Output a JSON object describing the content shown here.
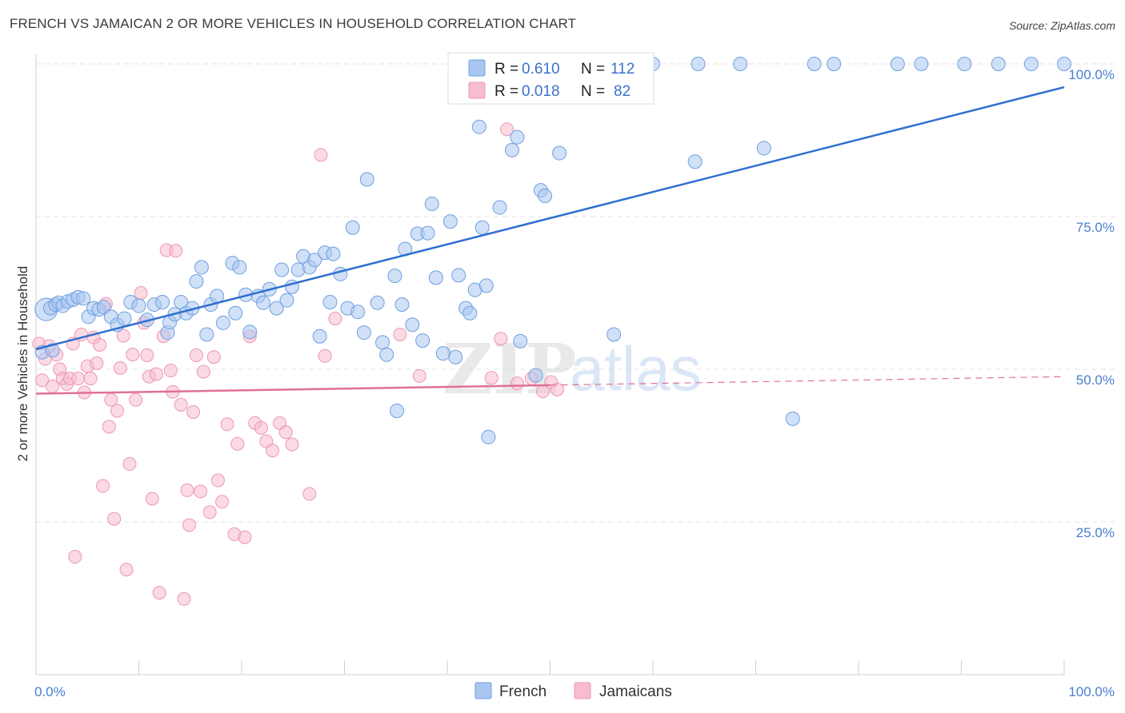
{
  "title": "FRENCH VS JAMAICAN 2 OR MORE VEHICLES IN HOUSEHOLD CORRELATION CHART",
  "source": "Source: ZipAtlas.com",
  "watermark": {
    "zip": "ZIP",
    "atlas": "atlas"
  },
  "colors": {
    "french_fill": "#a9c6f0",
    "french_stroke": "#6f9fe0",
    "french_line": "#2f6fcf",
    "jamaican_fill": "#f7bccd",
    "jamaican_stroke": "#ec97b1",
    "jamaican_line": "#e0709a",
    "tick_text": "#4a7fd0",
    "grid": "#e3e3e3"
  },
  "legend": {
    "rows": [
      {
        "r_label": "R = ",
        "r_value": "0.610",
        "n_label": "N = ",
        "n_value": "112"
      },
      {
        "r_label": "R = ",
        "r_value": "0.018",
        "n_label": "N = ",
        "n_value": "82"
      }
    ]
  },
  "bottom_legend": [
    "French",
    "Jamaicans"
  ],
  "chart_data": {
    "type": "scatter",
    "ylabel": "2 or more Vehicles in Household",
    "x_tick_labels": [
      "0.0%",
      "100.0%"
    ],
    "y_tick_labels": [
      "25.0%",
      "50.0%",
      "75.0%",
      "100.0%"
    ],
    "xlim": [
      0,
      100
    ],
    "ylim": [
      0,
      100
    ],
    "grid": true,
    "series": [
      {
        "name": "French",
        "r": 0.61,
        "n": 112,
        "trend": {
          "x": [
            0,
            100
          ],
          "y": [
            53.3,
            96.2
          ],
          "style": "solid"
        },
        "points": [
          [
            0.6,
            52.8
          ],
          [
            1,
            59.8
          ],
          [
            1.4,
            60
          ],
          [
            1.6,
            53.1
          ],
          [
            1.9,
            60.6
          ],
          [
            2.2,
            60.9
          ],
          [
            2.6,
            60.4
          ],
          [
            3.1,
            61.1
          ],
          [
            3.6,
            61.4
          ],
          [
            4.1,
            61.8
          ],
          [
            4.6,
            61.6
          ],
          [
            5.1,
            58.6
          ],
          [
            5.6,
            60
          ],
          [
            6.1,
            59.8
          ],
          [
            6.6,
            60.2
          ],
          [
            7.3,
            58.6
          ],
          [
            7.9,
            57.3
          ],
          [
            8.6,
            58.3
          ],
          [
            9.2,
            61
          ],
          [
            10,
            60.4
          ],
          [
            10.8,
            58.1
          ],
          [
            11.5,
            60.6
          ],
          [
            12.3,
            61
          ],
          [
            12.8,
            56
          ],
          [
            13,
            57.7
          ],
          [
            13.5,
            59
          ],
          [
            14.1,
            61
          ],
          [
            14.6,
            59.2
          ],
          [
            15.2,
            60
          ],
          [
            15.6,
            64.4
          ],
          [
            16.1,
            66.7
          ],
          [
            16.6,
            55.7
          ],
          [
            17,
            60.6
          ],
          [
            17.6,
            62
          ],
          [
            18.2,
            57.6
          ],
          [
            19.1,
            67.4
          ],
          [
            19.4,
            59.2
          ],
          [
            19.8,
            66.7
          ],
          [
            20.4,
            62.2
          ],
          [
            20.8,
            56.1
          ],
          [
            21.6,
            62
          ],
          [
            22.1,
            60.9
          ],
          [
            22.7,
            63.1
          ],
          [
            23.4,
            60
          ],
          [
            23.9,
            66.3
          ],
          [
            24.4,
            61.3
          ],
          [
            24.9,
            63.5
          ],
          [
            25.5,
            66.3
          ],
          [
            26,
            68.5
          ],
          [
            26.6,
            66.7
          ],
          [
            27.1,
            67.9
          ],
          [
            27.6,
            55.4
          ],
          [
            28.1,
            69.1
          ],
          [
            28.6,
            61
          ],
          [
            28.9,
            68.9
          ],
          [
            29.6,
            65.6
          ],
          [
            30.3,
            60
          ],
          [
            30.8,
            73.2
          ],
          [
            31.3,
            59.4
          ],
          [
            31.9,
            56
          ],
          [
            32.2,
            81.1
          ],
          [
            33.2,
            60.9
          ],
          [
            33.7,
            54.4
          ],
          [
            34.1,
            52.4
          ],
          [
            34.9,
            65.3
          ],
          [
            35.1,
            43.2
          ],
          [
            35.6,
            60.6
          ],
          [
            35.9,
            69.7
          ],
          [
            36.6,
            57.3
          ],
          [
            37.1,
            72.2
          ],
          [
            37.6,
            54.7
          ],
          [
            38.1,
            72.3
          ],
          [
            38.5,
            77.1
          ],
          [
            38.9,
            65
          ],
          [
            39.6,
            52.6
          ],
          [
            40.3,
            74.2
          ],
          [
            40.8,
            52
          ],
          [
            41.1,
            65.4
          ],
          [
            41.8,
            60
          ],
          [
            42.2,
            59.2
          ],
          [
            42.7,
            63
          ],
          [
            43.1,
            89.7
          ],
          [
            43.4,
            73.2
          ],
          [
            43.8,
            63.7
          ],
          [
            44,
            38.9
          ],
          [
            45.1,
            76.5
          ],
          [
            46.3,
            85.9
          ],
          [
            46.8,
            88
          ],
          [
            47.1,
            54.6
          ],
          [
            48.6,
            49
          ],
          [
            49.1,
            79.3
          ],
          [
            49.5,
            78.4
          ],
          [
            50.9,
            85.4
          ],
          [
            51.9,
            100
          ],
          [
            52.1,
            100
          ],
          [
            54.9,
            100
          ],
          [
            55.6,
            100
          ],
          [
            56.2,
            55.7
          ],
          [
            60,
            100
          ],
          [
            64.1,
            84
          ],
          [
            64.4,
            100
          ],
          [
            68.5,
            100
          ],
          [
            70.8,
            86.2
          ],
          [
            73.6,
            41.9
          ],
          [
            75.7,
            100
          ],
          [
            77.6,
            100
          ],
          [
            83.8,
            100
          ],
          [
            86.1,
            100
          ],
          [
            90.3,
            100
          ],
          [
            93.6,
            100
          ],
          [
            96.8,
            100
          ],
          [
            100,
            100
          ]
        ]
      },
      {
        "name": "Jamaicans",
        "r": 0.018,
        "n": 82,
        "trend": {
          "x": [
            0,
            100
          ],
          "y": [
            46.0,
            48.8
          ],
          "style": "solid-then-dashed",
          "solid_until_x": 50
        },
        "points": [
          [
            0.3,
            54.2
          ],
          [
            0.6,
            48.2
          ],
          [
            0.9,
            51.7
          ],
          [
            1.3,
            53.8
          ],
          [
            1.6,
            47.2
          ],
          [
            2,
            52.4
          ],
          [
            2.3,
            50
          ],
          [
            2.6,
            48.5
          ],
          [
            3,
            47.6
          ],
          [
            3.3,
            48.5
          ],
          [
            3.6,
            54.2
          ],
          [
            3.8,
            19.3
          ],
          [
            4.1,
            48.5
          ],
          [
            4.4,
            55.7
          ],
          [
            4.7,
            46.2
          ],
          [
            5,
            50.5
          ],
          [
            5.3,
            48.5
          ],
          [
            5.6,
            55.2
          ],
          [
            5.9,
            51
          ],
          [
            6.2,
            54
          ],
          [
            6.5,
            30.9
          ],
          [
            6.8,
            60.7
          ],
          [
            7.1,
            40.6
          ],
          [
            7.3,
            45
          ],
          [
            7.6,
            25.5
          ],
          [
            7.9,
            43.2
          ],
          [
            8.2,
            50.2
          ],
          [
            8.5,
            55.5
          ],
          [
            8.8,
            17.2
          ],
          [
            9.1,
            34.5
          ],
          [
            9.4,
            52.4
          ],
          [
            9.7,
            45
          ],
          [
            10.2,
            62.5
          ],
          [
            10.5,
            57.6
          ],
          [
            10.8,
            52.3
          ],
          [
            11,
            48.8
          ],
          [
            11.3,
            28.8
          ],
          [
            11.7,
            49.2
          ],
          [
            12,
            13.4
          ],
          [
            12.4,
            55.4
          ],
          [
            12.7,
            69.5
          ],
          [
            13.1,
            49.8
          ],
          [
            13.3,
            46.3
          ],
          [
            13.6,
            69.4
          ],
          [
            14.1,
            44.2
          ],
          [
            14.4,
            12.4
          ],
          [
            14.7,
            30.2
          ],
          [
            14.9,
            24.5
          ],
          [
            15.3,
            43
          ],
          [
            15.6,
            52.3
          ],
          [
            16,
            30
          ],
          [
            16.3,
            49.6
          ],
          [
            16.9,
            26.6
          ],
          [
            17.3,
            52
          ],
          [
            17.7,
            31.8
          ],
          [
            18.1,
            28.3
          ],
          [
            18.6,
            41
          ],
          [
            19.3,
            23
          ],
          [
            19.6,
            37.8
          ],
          [
            20.3,
            22.5
          ],
          [
            20.8,
            55.4
          ],
          [
            21.3,
            41.2
          ],
          [
            21.9,
            40.4
          ],
          [
            22.4,
            38.2
          ],
          [
            23,
            36.7
          ],
          [
            23.7,
            41.2
          ],
          [
            24.3,
            39.7
          ],
          [
            24.9,
            37.7
          ],
          [
            26.6,
            29.6
          ],
          [
            27.7,
            85.1
          ],
          [
            28.1,
            52.2
          ],
          [
            29.1,
            58.3
          ],
          [
            35.4,
            55.7
          ],
          [
            37.3,
            48.9
          ],
          [
            44.3,
            48.6
          ],
          [
            45.2,
            55
          ],
          [
            45.8,
            89.3
          ],
          [
            46.8,
            47.7
          ],
          [
            48.2,
            48.5
          ],
          [
            49.3,
            46.4
          ],
          [
            50.1,
            47.9
          ],
          [
            50.7,
            46.7
          ]
        ]
      }
    ]
  }
}
